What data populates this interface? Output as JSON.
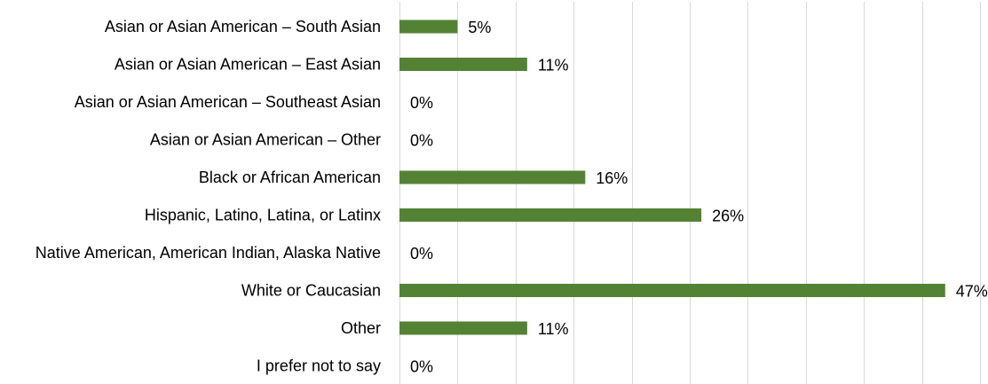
{
  "chart_data": {
    "type": "bar",
    "orientation": "horizontal",
    "title": "",
    "xlabel": "",
    "ylabel": "",
    "categories": [
      "Asian or Asian American – South Asian",
      "Asian or Asian American – East Asian",
      "Asian or Asian American – Southeast Asian",
      "Asian or Asian American – Other",
      "Black or African American",
      "Hispanic, Latino, Latina, or Latinx",
      "Native American, American Indian, Alaska Native",
      "White or Caucasian",
      "Other",
      "I prefer not to say"
    ],
    "values": [
      5,
      11,
      0,
      0,
      16,
      26,
      0,
      47,
      11,
      0
    ],
    "data_labels": [
      "5%",
      "11%",
      "0%",
      "0%",
      "16%",
      "26%",
      "0%",
      "47%",
      "11%",
      "0%"
    ],
    "unit": "%",
    "xlim": [
      0,
      50
    ],
    "x_grid_step": 5,
    "grid": true,
    "legend": "none",
    "colors": {
      "bar": "#548235",
      "grid": "#d9d9d9",
      "text": "#000000"
    }
  }
}
